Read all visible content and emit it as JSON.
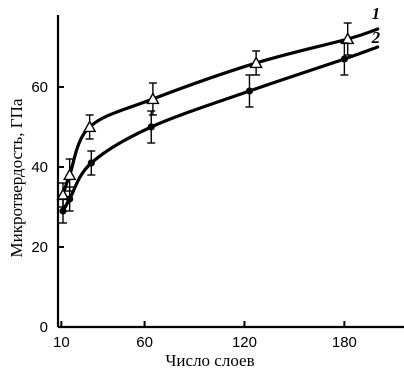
{
  "chart_data": {
    "type": "line",
    "title": "",
    "xlabel": "Число слоев",
    "ylabel": "Микротвердость, ГПа",
    "xlim": [
      8,
      205
    ],
    "ylim": [
      0,
      78
    ],
    "x_ticks": [
      10,
      60,
      120,
      180
    ],
    "y_ticks": [
      0,
      20,
      40,
      60
    ],
    "grid": false,
    "legend": "none",
    "series": [
      {
        "name": "1",
        "marker": "triangle-open",
        "color": "#000000",
        "points": [
          {
            "x": 11,
            "y": 33,
            "err": 3
          },
          {
            "x": 15,
            "y": 38,
            "err": 4
          },
          {
            "x": 27,
            "y": 50,
            "err": 3
          },
          {
            "x": 65,
            "y": 57,
            "err": 4
          },
          {
            "x": 127,
            "y": 66,
            "err": 3
          },
          {
            "x": 182,
            "y": 72,
            "err": 4
          }
        ],
        "curve_end": {
          "x": 200,
          "y": 74.5
        }
      },
      {
        "name": "2",
        "marker": "circle-filled",
        "color": "#000000",
        "points": [
          {
            "x": 11,
            "y": 29,
            "err": 3
          },
          {
            "x": 15,
            "y": 32,
            "err": 3
          },
          {
            "x": 28,
            "y": 41,
            "err": 3
          },
          {
            "x": 64,
            "y": 50,
            "err": 4
          },
          {
            "x": 123,
            "y": 59,
            "err": 4
          },
          {
            "x": 180,
            "y": 67,
            "err": 4
          }
        ],
        "curve_end": {
          "x": 200,
          "y": 70
        }
      }
    ]
  }
}
